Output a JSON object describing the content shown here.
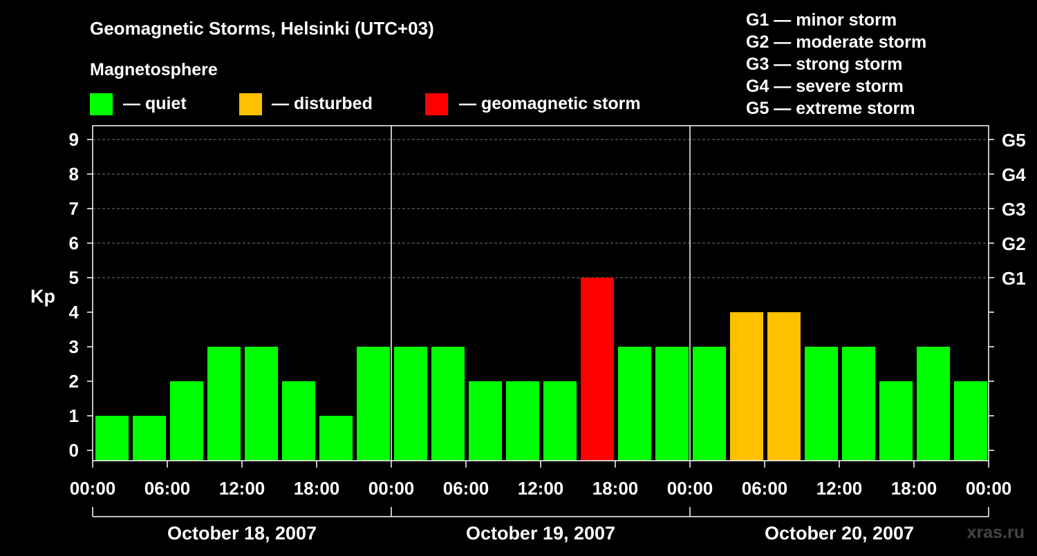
{
  "chart_data": {
    "type": "bar",
    "title": "Geomagnetic Storms, Helsinki (UTC+03)",
    "subtitle": "Magnetosphere",
    "ylabel": "Kp",
    "ylim": [
      0,
      9
    ],
    "y_ticks": [
      "0",
      "1",
      "2",
      "3",
      "4",
      "5",
      "6",
      "7",
      "8",
      "9"
    ],
    "right_ticks": [
      {
        "kp": 5,
        "label": "G1"
      },
      {
        "kp": 6,
        "label": "G2"
      },
      {
        "kp": 7,
        "label": "G3"
      },
      {
        "kp": 8,
        "label": "G4"
      },
      {
        "kp": 9,
        "label": "G5"
      }
    ],
    "legend": [
      {
        "label": "— quiet",
        "color": "#00ff00"
      },
      {
        "label": "— disturbed",
        "color": "#ffc000"
      },
      {
        "label": "— geomagnetic storm",
        "color": "#ff0000"
      }
    ],
    "scale_legend": [
      "G1 — minor storm",
      "G2 — moderate storm",
      "G3 — strong storm",
      "G4 — severe storm",
      "G5 — extreme storm"
    ],
    "x_ticks": [
      "00:00",
      "06:00",
      "12:00",
      "18:00",
      "00:00",
      "06:00",
      "12:00",
      "18:00",
      "00:00",
      "06:00",
      "12:00",
      "18:00",
      "00:00"
    ],
    "days": [
      "October 18, 2007",
      "October 19, 2007",
      "October 20, 2007"
    ],
    "values": [
      1,
      1,
      2,
      3,
      3,
      2,
      1,
      3,
      3,
      3,
      2,
      2,
      2,
      5,
      3,
      3,
      3,
      4,
      4,
      3,
      3,
      2,
      3,
      2
    ],
    "colors": {
      "quiet": "#00ff00",
      "disturbed": "#ffc000",
      "storm": "#ff0000"
    },
    "gridlines": true
  },
  "watermark": "xras.ru"
}
